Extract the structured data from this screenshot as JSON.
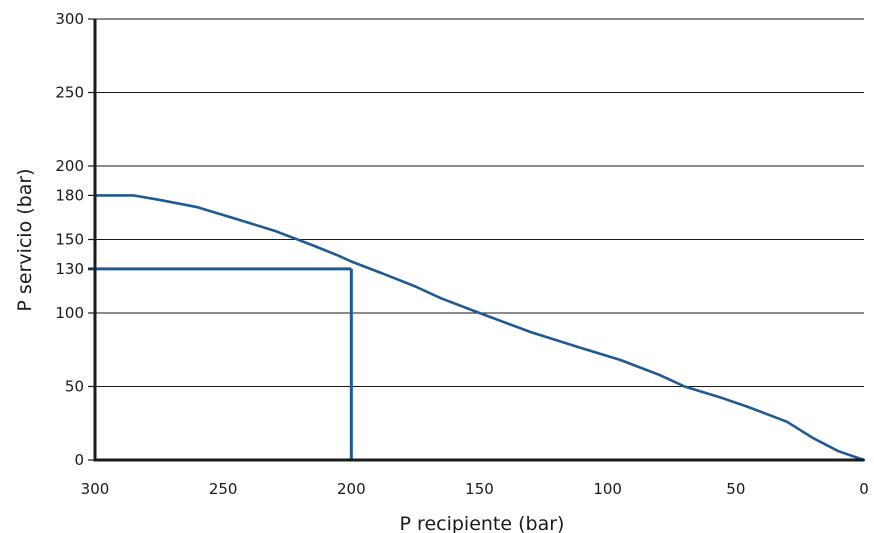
{
  "chart_data": {
    "type": "line",
    "title": "",
    "xlabel": "P recipiente (bar)",
    "ylabel": "P servicio (bar)",
    "xlim": [
      300,
      0
    ],
    "ylim": [
      0,
      300
    ],
    "x_reversed": true,
    "x_ticks": [
      300,
      250,
      200,
      150,
      100,
      50,
      0
    ],
    "y_ticks": [
      0,
      50,
      100,
      130,
      150,
      180,
      200,
      250,
      300
    ],
    "grid": "horizontal",
    "colors": {
      "series": "#1f5a91",
      "axis": "#1a1a1a",
      "grid": "#1a1a1a"
    },
    "series": [
      {
        "points": [
          [
            300,
            180
          ],
          [
            285,
            180
          ],
          [
            275,
            177
          ],
          [
            260,
            172
          ],
          [
            245,
            164
          ],
          [
            230,
            156
          ],
          [
            215,
            146
          ],
          [
            205,
            139
          ],
          [
            200,
            135
          ],
          [
            185,
            125
          ],
          [
            175,
            118
          ],
          [
            165,
            110
          ],
          [
            150,
            100
          ],
          [
            130,
            87
          ],
          [
            110,
            76
          ],
          [
            95,
            68
          ],
          [
            80,
            58
          ],
          [
            75,
            54
          ],
          [
            70,
            50
          ],
          [
            55,
            42
          ],
          [
            45,
            36
          ],
          [
            30,
            26
          ],
          [
            20,
            15
          ],
          [
            10,
            6
          ],
          [
            0,
            0
          ]
        ]
      }
    ],
    "annotations": {
      "reference_point": {
        "x": 200,
        "y": 130
      }
    }
  }
}
